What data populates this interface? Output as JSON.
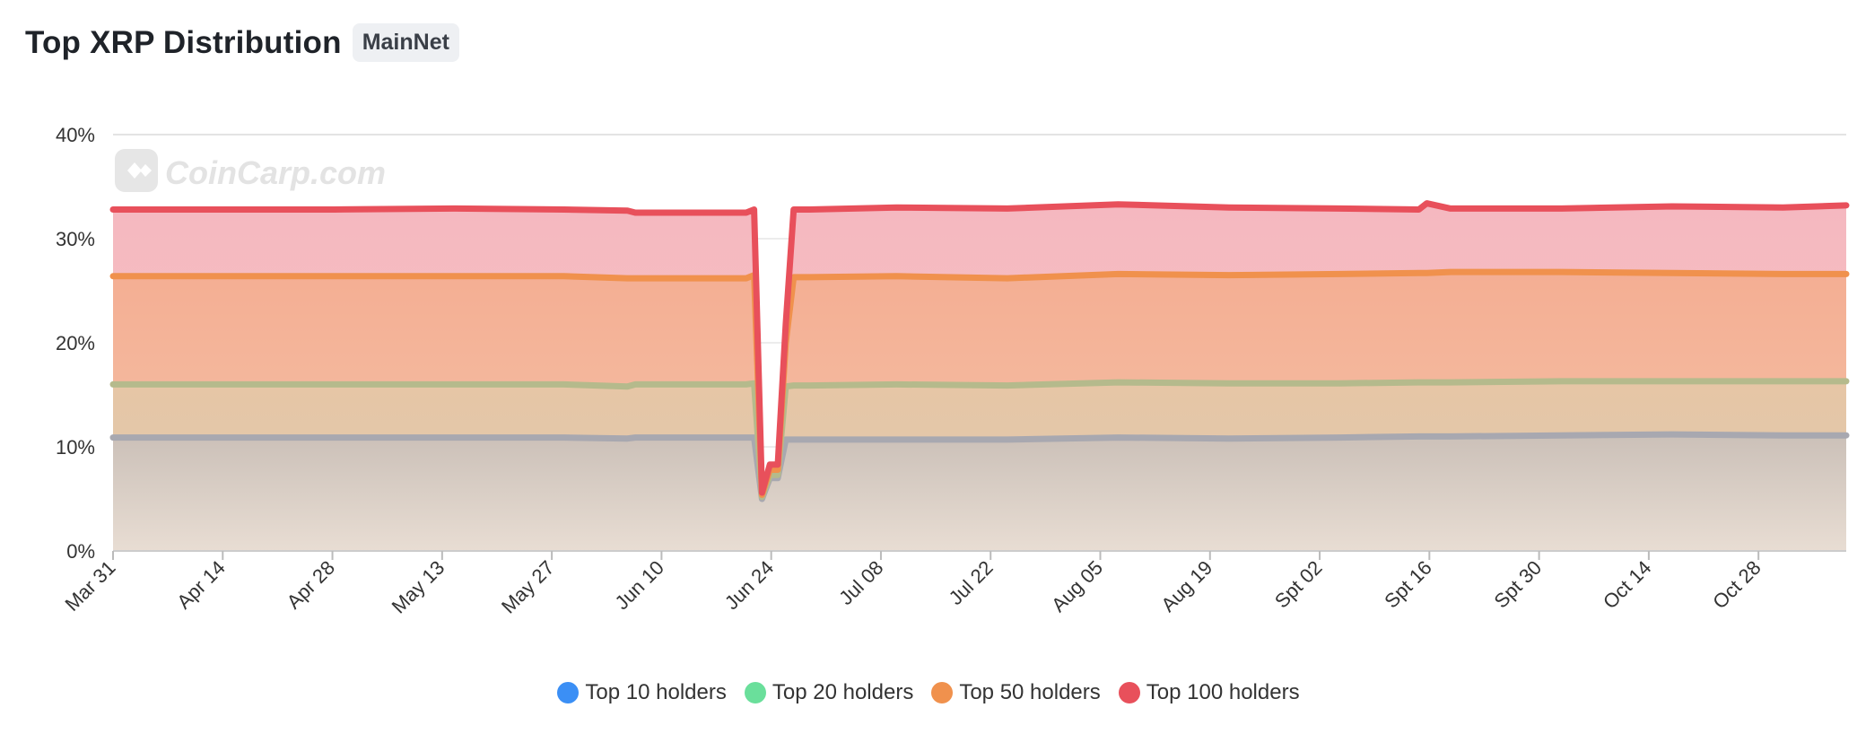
{
  "header": {
    "title": "Top XRP Distribution",
    "network_badge": "MainNet"
  },
  "watermark": {
    "text": "CoinCarp.com",
    "icon": "coincarp-logo-icon"
  },
  "legend": {
    "items": [
      {
        "label": "Top 10 holders",
        "color": "#3b8ff5"
      },
      {
        "label": "Top 20 holders",
        "color": "#6adf9b"
      },
      {
        "label": "Top 50 holders",
        "color": "#f0914d"
      },
      {
        "label": "Top 100 holders",
        "color": "#e8505b"
      }
    ]
  },
  "chart_data": {
    "type": "area",
    "title": "Top XRP Distribution",
    "x_ticks": [
      "Mar 31",
      "Apr 14",
      "Apr 28",
      "May 13",
      "May 27",
      "Jun 10",
      "Jun 24",
      "Jul 08",
      "Jul 22",
      "Aug 05",
      "Aug 19",
      "Spt 02",
      "Spt 16",
      "Spt 30",
      "Oct 14",
      "Oct 28"
    ],
    "x": [
      "Mar 31",
      "Apr 14",
      "Apr 28",
      "May 13",
      "May 27",
      "Jun 04",
      "Jun 05",
      "Jun 10",
      "Jun 19",
      "Jun 20",
      "Jun 21",
      "Jun 22",
      "Jun 23",
      "Jun 24",
      "Jun 25",
      "Jun 26",
      "Jun 27",
      "Jul 08",
      "Jul 22",
      "Aug 05",
      "Aug 19",
      "Spt 02",
      "Spt 12",
      "Spt 13",
      "Spt 16",
      "Spt 30",
      "Oct 14",
      "Oct 28",
      "Nov 05"
    ],
    "y_ticks": [
      "0%",
      "10%",
      "20%",
      "30%",
      "40%"
    ],
    "ylim": [
      0,
      40
    ],
    "grid": true,
    "legend_position": "bottom",
    "series": [
      {
        "name": "Top 10 holders",
        "color": "#a8a8b0",
        "values": [
          10.9,
          10.9,
          10.9,
          10.9,
          10.9,
          10.8,
          10.9,
          10.9,
          10.9,
          10.9,
          5.0,
          7.0,
          7.0,
          10.7,
          10.7,
          10.7,
          10.7,
          10.7,
          10.7,
          10.9,
          10.8,
          10.9,
          11.0,
          11.0,
          11.0,
          11.1,
          11.2,
          11.1,
          11.1
        ]
      },
      {
        "name": "Top 20 holders",
        "color": "#b5ba8c",
        "values": [
          16.0,
          16.0,
          16.0,
          16.0,
          16.0,
          15.8,
          16.0,
          16.0,
          16.0,
          16.1,
          5.2,
          7.3,
          7.3,
          15.8,
          15.9,
          15.9,
          15.9,
          16.0,
          15.9,
          16.2,
          16.1,
          16.1,
          16.2,
          16.2,
          16.2,
          16.3,
          16.3,
          16.3,
          16.3
        ]
      },
      {
        "name": "Top 50 holders",
        "color": "#f0914d",
        "values": [
          26.4,
          26.4,
          26.4,
          26.4,
          26.4,
          26.2,
          26.2,
          26.2,
          26.2,
          26.5,
          5.4,
          7.8,
          7.8,
          20.0,
          26.3,
          26.3,
          26.3,
          26.4,
          26.2,
          26.6,
          26.5,
          26.6,
          26.7,
          26.7,
          26.8,
          26.8,
          26.7,
          26.6,
          26.6
        ]
      },
      {
        "name": "Top 100 holders",
        "color": "#e8505b",
        "values": [
          32.8,
          32.8,
          32.8,
          32.9,
          32.8,
          32.7,
          32.5,
          32.5,
          32.5,
          32.8,
          5.6,
          8.3,
          8.3,
          21.8,
          32.8,
          32.8,
          32.8,
          33.0,
          32.9,
          33.3,
          33.0,
          32.9,
          32.8,
          33.4,
          32.9,
          32.9,
          33.1,
          33.0,
          33.2
        ]
      }
    ]
  }
}
